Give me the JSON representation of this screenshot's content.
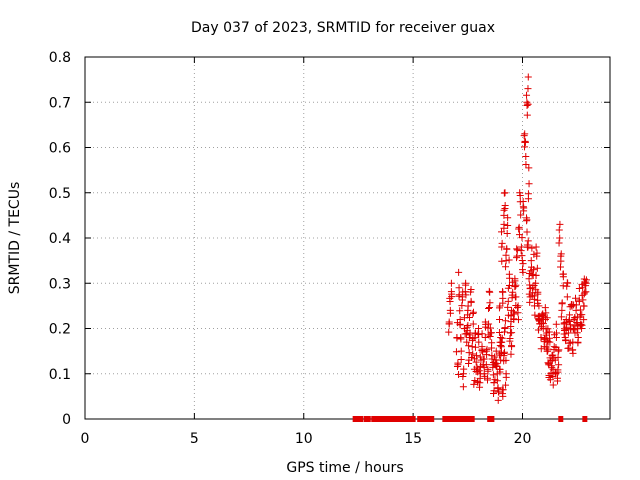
{
  "chart_data": {
    "type": "scatter",
    "title": "Day 037 of 2023, SRMTID for receiver guax",
    "xlabel": "GPS time / hours",
    "ylabel": "SRMTID / TECUs",
    "xlim": [
      0,
      24
    ],
    "ylim": [
      0,
      0.8
    ],
    "xticks": [
      0,
      5,
      10,
      15,
      20
    ],
    "yticks": [
      0,
      0.1,
      0.2,
      0.3,
      0.4,
      0.5,
      0.6,
      0.7,
      0.8
    ],
    "xtick_labels": [
      "0",
      "5",
      "10",
      "15",
      "20"
    ],
    "ytick_labels": [
      "0",
      "0.1",
      "0.2",
      "0.3",
      "0.4",
      "0.5",
      "0.6",
      "0.7",
      "0.8"
    ],
    "grid": true,
    "marker": "+",
    "color": "#e00000",
    "zero_points_x": [
      12.35,
      12.45,
      12.6,
      12.85,
      12.95,
      13.2,
      13.4,
      13.55,
      13.7,
      13.8,
      13.9,
      14.0,
      14.1,
      14.2,
      14.35,
      14.5,
      14.6,
      14.7,
      14.85,
      15.0,
      15.3,
      15.45,
      15.6,
      15.75,
      15.85,
      16.45,
      16.6,
      16.8,
      16.95,
      17.15,
      17.35,
      17.55,
      17.7,
      18.5,
      18.6,
      21.75,
      22.85
    ],
    "clusters": [
      {
        "x": [
          16.65,
          16.7,
          16.75
        ],
        "y": [
          0.21,
          0.24,
          0.3
        ]
      },
      {
        "x": [
          17.0,
          17.05,
          17.1,
          17.15,
          17.2,
          17.25,
          17.3,
          17.35,
          17.4,
          17.45,
          17.5,
          17.55,
          17.6,
          17.65,
          17.7,
          17.75,
          17.8,
          17.85
        ],
        "y": [
          0.18,
          0.12,
          0.29,
          0.22,
          0.15,
          0.27,
          0.1,
          0.2,
          0.3,
          0.17,
          0.24,
          0.13,
          0.19,
          0.26,
          0.16,
          0.21,
          0.11,
          0.19
        ]
      },
      {
        "x": [
          17.9,
          17.95,
          18.0,
          18.05,
          18.1,
          18.15,
          18.2,
          18.25,
          18.3,
          18.35,
          18.4,
          18.45,
          18.5,
          18.55,
          18.6,
          18.65
        ],
        "y": [
          0.14,
          0.11,
          0.17,
          0.08,
          0.13,
          0.16,
          0.12,
          0.1,
          0.18,
          0.15,
          0.09,
          0.21,
          0.28,
          0.19,
          0.14,
          0.12
        ]
      },
      {
        "x": [
          18.7,
          18.75,
          18.8,
          18.85,
          18.9,
          18.95,
          19.0,
          19.05,
          19.1,
          19.15,
          19.2,
          19.25
        ],
        "y": [
          0.08,
          0.12,
          0.15,
          0.1,
          0.06,
          0.11,
          0.13,
          0.17,
          0.05,
          0.14,
          0.2,
          0.1
        ]
      },
      {
        "x": [
          18.95,
          19.0,
          19.05,
          19.1,
          19.15,
          19.2,
          19.25,
          19.3,
          19.35,
          19.4,
          19.45,
          19.5
        ],
        "y": [
          0.22,
          0.18,
          0.38,
          0.28,
          0.45,
          0.5,
          0.35,
          0.41,
          0.26,
          0.32,
          0.19,
          0.16
        ]
      },
      {
        "x": [
          19.5,
          19.55,
          19.6,
          19.65,
          19.7,
          19.75,
          19.8,
          19.85,
          19.9,
          19.95,
          20.0,
          20.05,
          20.1,
          20.15,
          20.2,
          20.25,
          20.3
        ],
        "y": [
          0.24,
          0.28,
          0.22,
          0.31,
          0.27,
          0.36,
          0.25,
          0.42,
          0.48,
          0.38,
          0.33,
          0.46,
          0.63,
          0.58,
          0.7,
          0.73,
          0.52
        ]
      },
      {
        "x": [
          20.2,
          20.25,
          20.3,
          20.35,
          20.4,
          20.45,
          20.5,
          20.55,
          20.6,
          20.65,
          20.7,
          20.75
        ],
        "y": [
          0.44,
          0.38,
          0.31,
          0.27,
          0.35,
          0.29,
          0.33,
          0.25,
          0.3,
          0.36,
          0.28,
          0.22
        ]
      },
      {
        "x": [
          20.75,
          20.8,
          20.85,
          20.9,
          20.95,
          21.0,
          21.05,
          21.1,
          21.15
        ],
        "y": [
          0.25,
          0.21,
          0.18,
          0.23,
          0.2,
          0.16,
          0.22,
          0.19,
          0.17
        ]
      },
      {
        "x": [
          21.15,
          21.2,
          21.25,
          21.3,
          21.35,
          21.4,
          21.45,
          21.5,
          21.55,
          21.6,
          21.65
        ],
        "y": [
          0.15,
          0.12,
          0.17,
          0.1,
          0.14,
          0.11,
          0.16,
          0.13,
          0.18,
          0.09,
          0.12
        ]
      },
      {
        "x": [
          21.7,
          21.75,
          21.8,
          21.85,
          21.9,
          21.95,
          22.0,
          22.05,
          22.1,
          22.15,
          22.2,
          22.25
        ],
        "y": [
          0.4,
          0.36,
          0.24,
          0.32,
          0.21,
          0.18,
          0.22,
          0.27,
          0.19,
          0.23,
          0.2,
          0.25
        ]
      },
      {
        "x": [
          22.3,
          22.35,
          22.4,
          22.45,
          22.5,
          22.55,
          22.6,
          22.65,
          22.7,
          22.75,
          22.8,
          22.85,
          22.9
        ],
        "y": [
          0.17,
          0.22,
          0.19,
          0.24,
          0.21,
          0.18,
          0.26,
          0.23,
          0.2,
          0.29,
          0.25,
          0.28,
          0.3
        ]
      }
    ],
    "spread": 0.035
  }
}
